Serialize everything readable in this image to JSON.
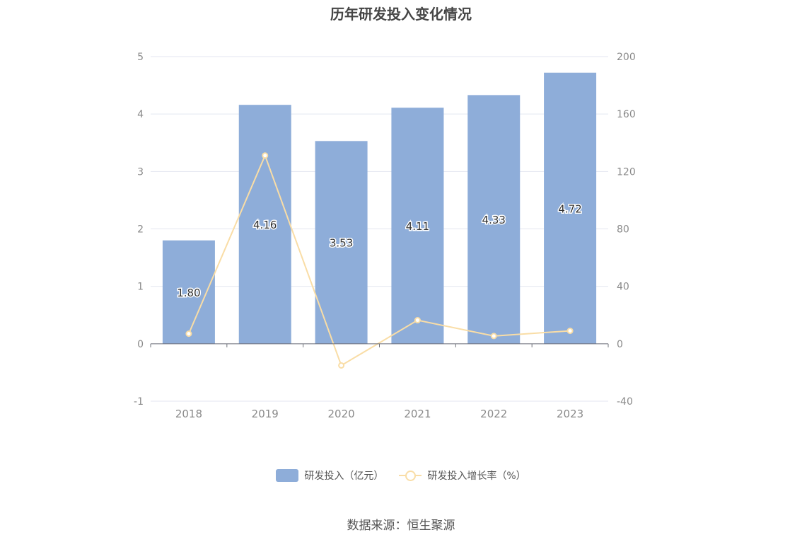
{
  "chart_data": {
    "type": "bar",
    "title": "历年研发投入变化情况",
    "categories": [
      "2018",
      "2019",
      "2020",
      "2021",
      "2022",
      "2023"
    ],
    "series": [
      {
        "name": "研发投入（亿元）",
        "type": "bar",
        "axis": "left",
        "values": [
          1.8,
          4.16,
          3.53,
          4.11,
          4.33,
          4.72
        ],
        "labels": [
          "1.80",
          "4.16",
          "3.53",
          "4.11",
          "4.33",
          "4.72"
        ]
      },
      {
        "name": "研发投入增长率（%）",
        "type": "line",
        "axis": "right",
        "values": [
          7.0,
          131.1,
          -15.1,
          16.4,
          5.4,
          9.0
        ]
      }
    ],
    "y_left": {
      "ylim": [
        -1,
        5
      ],
      "ticks": [
        "5",
        "4",
        "3",
        "2",
        "1",
        "0",
        "-1"
      ]
    },
    "y_right": {
      "ylim": [
        -40,
        200
      ],
      "ticks": [
        "200",
        "160",
        "120",
        "80",
        "40",
        "0",
        "-40"
      ]
    },
    "grid": true,
    "legend_position": "bottom",
    "colors": {
      "bar": "#8eadd9",
      "line": "#f9dda6"
    }
  },
  "source": "数据来源：恒生聚源"
}
